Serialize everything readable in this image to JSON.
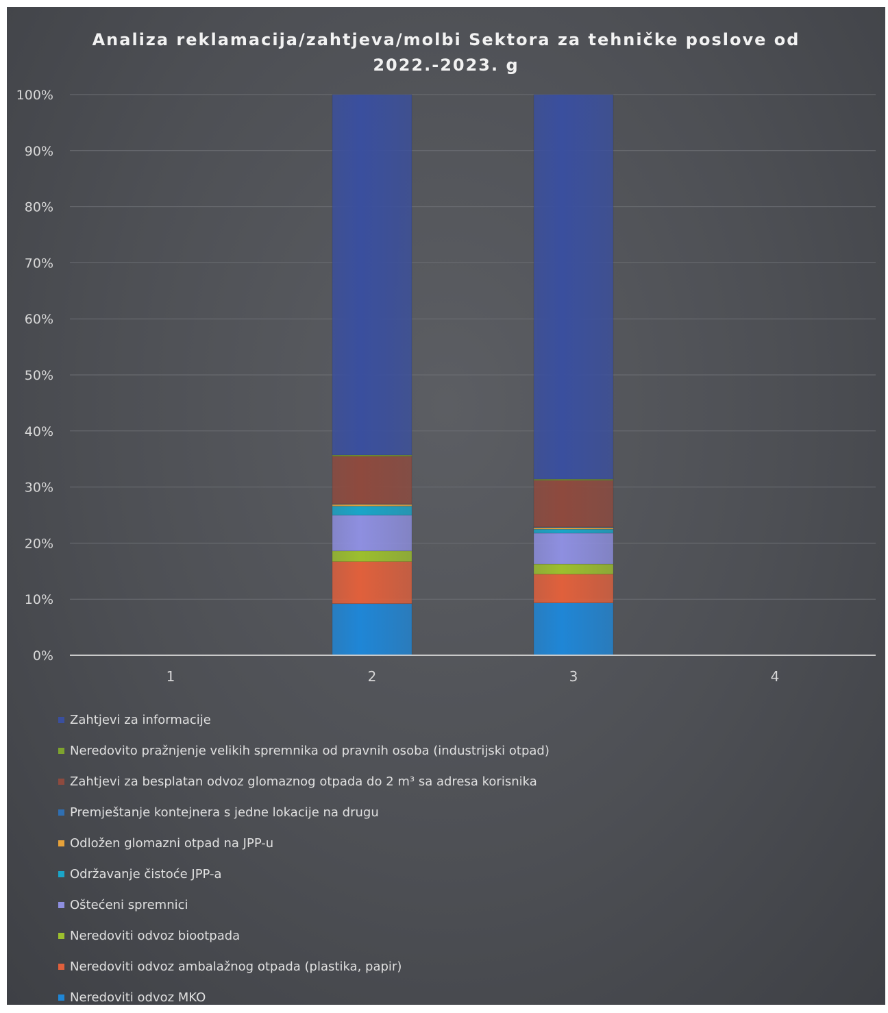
{
  "chart_data": {
    "type": "bar",
    "stacking": "percent",
    "title": "Analiza reklamacija/zahtjeva/molbi Sektora za tehničke poslove od 2022.-2023. g",
    "title_lines": [
      "Analiza reklamacija/zahtjeva/molbi Sektora za tehničke poslove od",
      "2022.-2023. g"
    ],
    "xlabel": "",
    "ylabel": "",
    "categories": [
      "1",
      "2",
      "3",
      "4"
    ],
    "ylim": [
      0,
      100
    ],
    "y_ticks": [
      0,
      10,
      20,
      30,
      40,
      50,
      60,
      70,
      80,
      90,
      100
    ],
    "y_tick_labels": [
      "0%",
      "10%",
      "20%",
      "30%",
      "40%",
      "50%",
      "60%",
      "70%",
      "80%",
      "90%",
      "100%"
    ],
    "grid": true,
    "legend_position": "bottom",
    "series": [
      {
        "name": "Neredoviti odvoz MKO",
        "color": "#1f86d6",
        "values": [
          0,
          9.1,
          9.3,
          0
        ]
      },
      {
        "name": "Neredoviti odvoz ambalažnog otpada (plastika, papir)",
        "color": "#e0603c",
        "values": [
          0,
          7.4,
          5.1,
          0
        ]
      },
      {
        "name": "Neredoviti odvoz biootpada",
        "color": "#9cbf2e",
        "values": [
          0,
          1.9,
          1.8,
          0
        ]
      },
      {
        "name": "Oštećeni  spremnici",
        "color": "#8e8fe0",
        "values": [
          0,
          6.3,
          5.5,
          0
        ]
      },
      {
        "name": "Održavanje čistoće JPP-a",
        "color": "#1aa5c8",
        "values": [
          0,
          1.6,
          0.7,
          0
        ]
      },
      {
        "name": "Odložen glomazni otpad na JPP-u",
        "color": "#e7a23a",
        "values": [
          0,
          0.3,
          0.3,
          0
        ]
      },
      {
        "name": "Premještanje kontejnera s jedne lokacije na drugu",
        "color": "#2f6fb2",
        "values": [
          0,
          0.1,
          0.1,
          0
        ]
      },
      {
        "name": "Zahtjevi za besplatan odvoz glomaznog otpada do 2 m³ sa adresa korisnika",
        "color": "#8e4a3e",
        "values": [
          0,
          8.4,
          8.3,
          0
        ]
      },
      {
        "name": "Neredovito pražnjenje velikih spremnika od pravnih osoba (industrijski otpad)",
        "color": "#7ea32e",
        "values": [
          0,
          0.2,
          0.2,
          0
        ]
      },
      {
        "name": "Zahtjevi za informacije",
        "color": "#3a4f9e",
        "values": [
          0,
          63.6,
          68.4,
          0
        ]
      }
    ]
  }
}
